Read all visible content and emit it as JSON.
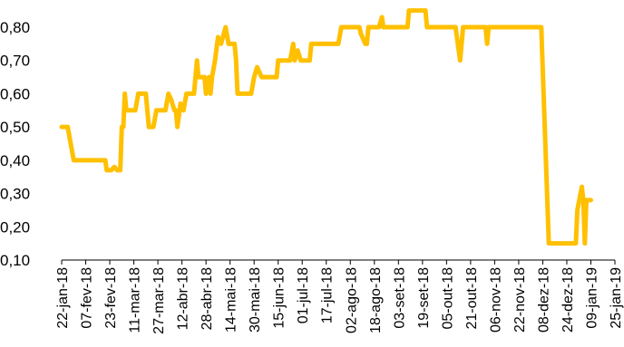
{
  "chart_data": {
    "type": "line",
    "title": "",
    "xlabel": "",
    "ylabel": "",
    "ylim": [
      0.1,
      0.85
    ],
    "grid": false,
    "legend": "none",
    "y_ticks": [
      "0,10",
      "0,20",
      "0,30",
      "0,40",
      "0,50",
      "0,60",
      "0,70",
      "0,80"
    ],
    "y_tick_values": [
      0.1,
      0.2,
      0.3,
      0.4,
      0.5,
      0.6,
      0.7,
      0.8
    ],
    "x_ticks": [
      "22-jan-18",
      "07-fev-18",
      "23-fev-18",
      "11-mar-18",
      "27-mar-18",
      "12-abr-18",
      "28-abr-18",
      "14-mai-18",
      "30-mai-18",
      "15-jun-18",
      "01-jul-18",
      "17-jul-18",
      "02-ago-18",
      "18-ago-18",
      "03-set-18",
      "19-set-18",
      "05-out-18",
      "21-out-18",
      "06-nov-18",
      "22-nov-18",
      "08-dez-18",
      "24-dez-18",
      "09-jan-19",
      "25-jan-19"
    ],
    "series": [
      {
        "color": "#FFC000",
        "points": [
          [
            "2018-01-22",
            0.5
          ],
          [
            "2018-01-26",
            0.5
          ],
          [
            "2018-01-30",
            0.4
          ],
          [
            "2018-02-20",
            0.4
          ],
          [
            "2018-02-21",
            0.37
          ],
          [
            "2018-02-24",
            0.37
          ],
          [
            "2018-02-26",
            0.38
          ],
          [
            "2018-02-28",
            0.37
          ],
          [
            "2018-03-02",
            0.37
          ],
          [
            "2018-03-03",
            0.5
          ],
          [
            "2018-03-04",
            0.5
          ],
          [
            "2018-03-05",
            0.6
          ],
          [
            "2018-03-06",
            0.55
          ],
          [
            "2018-03-12",
            0.55
          ],
          [
            "2018-03-14",
            0.6
          ],
          [
            "2018-03-19",
            0.6
          ],
          [
            "2018-03-21",
            0.5
          ],
          [
            "2018-03-24",
            0.5
          ],
          [
            "2018-03-26",
            0.55
          ],
          [
            "2018-04-01",
            0.55
          ],
          [
            "2018-04-03",
            0.6
          ],
          [
            "2018-04-05",
            0.58
          ],
          [
            "2018-04-07",
            0.55
          ],
          [
            "2018-04-08",
            0.55
          ],
          [
            "2018-04-09",
            0.5
          ],
          [
            "2018-04-11",
            0.57
          ],
          [
            "2018-04-13",
            0.55
          ],
          [
            "2018-04-15",
            0.6
          ],
          [
            "2018-04-20",
            0.6
          ],
          [
            "2018-04-22",
            0.7
          ],
          [
            "2018-04-23",
            0.65
          ],
          [
            "2018-04-27",
            0.65
          ],
          [
            "2018-04-28",
            0.6
          ],
          [
            "2018-04-30",
            0.65
          ],
          [
            "2018-05-01",
            0.6
          ],
          [
            "2018-05-02",
            0.65
          ],
          [
            "2018-05-04",
            0.7
          ],
          [
            "2018-05-06",
            0.77
          ],
          [
            "2018-05-08",
            0.75
          ],
          [
            "2018-05-11",
            0.8
          ],
          [
            "2018-05-13",
            0.75
          ],
          [
            "2018-05-17",
            0.75
          ],
          [
            "2018-05-18",
            0.7
          ],
          [
            "2018-05-19",
            0.6
          ],
          [
            "2018-05-20",
            0.6
          ],
          [
            "2018-05-21",
            0.6
          ],
          [
            "2018-05-28",
            0.6
          ],
          [
            "2018-05-30",
            0.65
          ],
          [
            "2018-06-01",
            0.68
          ],
          [
            "2018-06-04",
            0.65
          ],
          [
            "2018-06-06",
            0.65
          ],
          [
            "2018-06-14",
            0.65
          ],
          [
            "2018-06-15",
            0.7
          ],
          [
            "2018-06-23",
            0.7
          ],
          [
            "2018-06-25",
            0.75
          ],
          [
            "2018-06-26",
            0.7
          ],
          [
            "2018-06-28",
            0.73
          ],
          [
            "2018-06-30",
            0.7
          ],
          [
            "2018-07-06",
            0.7
          ],
          [
            "2018-07-07",
            0.75
          ],
          [
            "2018-07-25",
            0.75
          ],
          [
            "2018-07-27",
            0.8
          ],
          [
            "2018-08-08",
            0.8
          ],
          [
            "2018-08-09",
            0.78
          ],
          [
            "2018-08-12",
            0.75
          ],
          [
            "2018-08-13",
            0.75
          ],
          [
            "2018-08-14",
            0.8
          ],
          [
            "2018-08-21",
            0.8
          ],
          [
            "2018-08-23",
            0.83
          ],
          [
            "2018-08-24",
            0.8
          ],
          [
            "2018-09-09",
            0.8
          ],
          [
            "2018-09-10",
            0.85
          ],
          [
            "2018-09-21",
            0.85
          ],
          [
            "2018-09-22",
            0.8
          ],
          [
            "2018-10-11",
            0.8
          ],
          [
            "2018-10-14",
            0.7
          ],
          [
            "2018-10-16",
            0.8
          ],
          [
            "2018-10-31",
            0.8
          ],
          [
            "2018-11-01",
            0.75
          ],
          [
            "2018-11-02",
            0.8
          ],
          [
            "2018-12-07",
            0.8
          ],
          [
            "2018-12-12",
            0.15
          ],
          [
            "2018-12-30",
            0.15
          ],
          [
            "2018-12-31",
            0.25
          ],
          [
            "2019-01-03",
            0.32
          ],
          [
            "2019-01-04",
            0.28
          ],
          [
            "2019-01-05",
            0.15
          ],
          [
            "2019-01-06",
            0.28
          ],
          [
            "2019-01-09",
            0.28
          ]
        ]
      }
    ]
  }
}
